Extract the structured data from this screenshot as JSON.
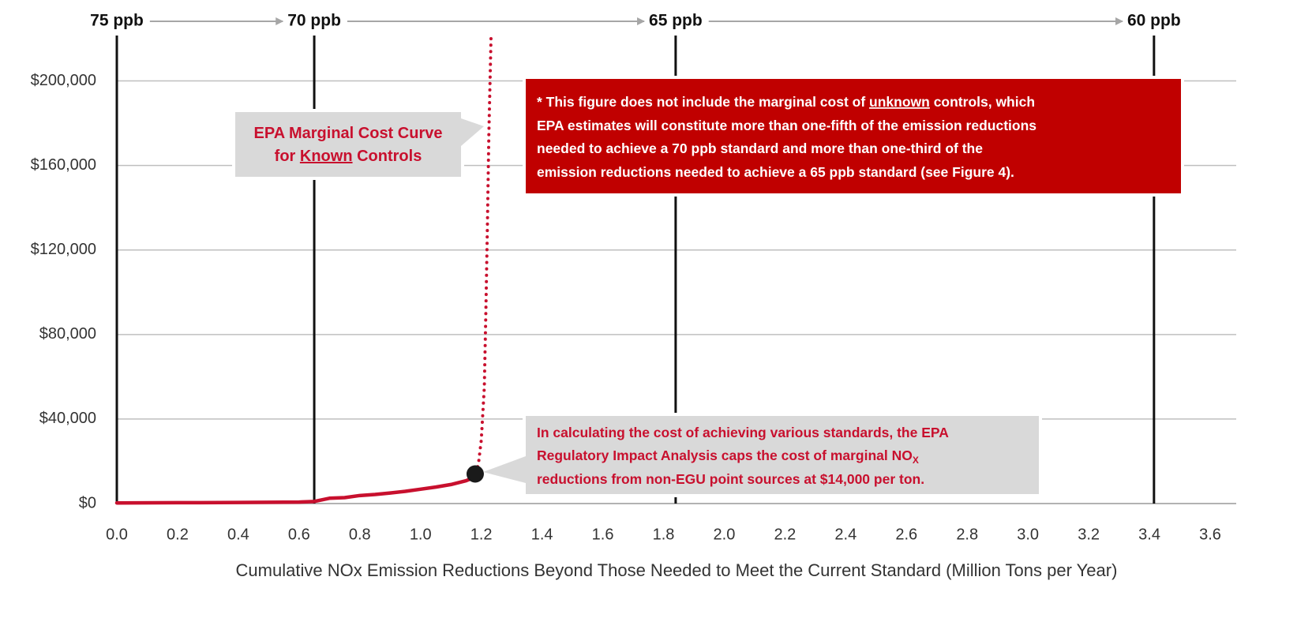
{
  "chart_data": {
    "type": "line",
    "x_label": "Cumulative NOx Emission Reductions Beyond Those Needed to Meet the Current Standard (Million Tons per Year)",
    "xlim": [
      0,
      3.6
    ],
    "xticks": [
      {
        "value": 0,
        "label": "0.0"
      },
      0.2,
      0.4,
      0.6,
      0.8,
      {
        "value": 1,
        "label": "1.0"
      },
      1.2,
      1.4,
      1.6,
      1.8,
      {
        "value": 2,
        "label": "2.0"
      },
      2.2,
      2.4,
      2.6,
      2.8,
      {
        "value": 3,
        "label": "3.0"
      },
      3.2,
      3.4,
      3.6
    ],
    "ylim": [
      0,
      220000
    ],
    "yticks": [
      {
        "value": 0,
        "label": "$0"
      },
      {
        "value": 40000,
        "label": "$40,000"
      },
      {
        "value": 80000,
        "label": "$80,000"
      },
      {
        "value": 120000,
        "label": "$120,000"
      },
      {
        "value": 160000,
        "label": "$160,000"
      },
      {
        "value": 200000,
        "label": "$200,000"
      }
    ],
    "grid": true,
    "series": [
      {
        "color": "#c8102e",
        "style": "solid",
        "x": [
          0,
          0.2,
          0.4,
          0.6,
          0.65,
          0.7,
          0.75,
          0.8,
          0.85,
          0.9,
          0.95,
          1.0,
          1.05,
          1.1,
          1.15,
          1.17
        ],
        "values": [
          300,
          400,
          500,
          700,
          1000,
          2500,
          2800,
          3800,
          4300,
          5000,
          5800,
          6800,
          7800,
          9000,
          10800,
          12000
        ]
      },
      {
        "color": "#c8102e",
        "style": "dotted",
        "x": [
          1.17,
          1.19,
          1.2,
          1.21,
          1.215,
          1.22,
          1.225,
          1.232
        ],
        "values": [
          12000,
          18000,
          30000,
          55000,
          90000,
          130000,
          175000,
          220000
        ]
      }
    ],
    "cap_point": {
      "x": 1.18,
      "value": 14000,
      "color": "#1a1a1a"
    },
    "standards": [
      {
        "label": "75 ppb",
        "x": 0
      },
      {
        "label": "70 ppb",
        "x": 0.65
      },
      {
        "label": "65 ppb",
        "x": 1.84
      },
      {
        "label": "60 ppb",
        "x": 3.415
      }
    ],
    "annotations": [
      {
        "lines": [
          [
            "EPA Marginal Cost Curve"
          ],
          [
            "for ",
            "Known",
            " Controls"
          ]
        ]
      },
      {
        "lines": [
          [
            "* This figure does not include the marginal cost of ",
            "unknown",
            " controls, which"
          ],
          [
            "EPA estimates will constitute more than one-fifth of the emission reductions"
          ],
          [
            "needed to achieve a 70 ppb standard and more than one-third of the"
          ],
          [
            "emission reductions needed to achieve a 65 ppb standard (see Figure 4)."
          ]
        ]
      },
      {
        "lines": [
          [
            "In calculating the cost of achieving various standards, the EPA"
          ],
          [
            "Regulatory Impact Analysis caps the cost of marginal NO",
            "X"
          ],
          [
            "reductions from non-EGU point sources at $14,000 per ton."
          ]
        ]
      }
    ]
  }
}
